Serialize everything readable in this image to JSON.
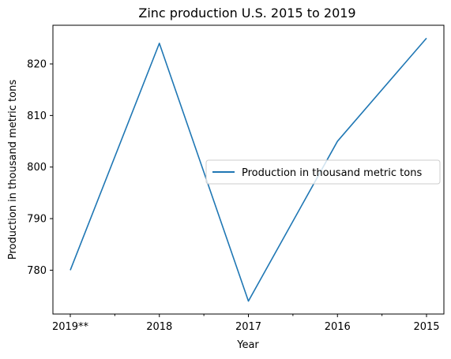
{
  "chart_data": {
    "type": "line",
    "title": "Zinc production U.S. 2015 to 2019",
    "xlabel": "Year",
    "ylabel": "Production in thousand metric tons",
    "categories": [
      "2019**",
      "2018",
      "2017",
      "2016",
      "2015"
    ],
    "series": [
      {
        "name": "Production in thousand metric tons",
        "values": [
          780,
          824,
          774,
          805,
          825
        ],
        "color": "#1f77b4"
      }
    ],
    "ylim": [
      771.5,
      827.5
    ],
    "yticks": [
      780,
      790,
      800,
      810,
      820
    ],
    "grid": false,
    "legend_position": "center-right"
  }
}
